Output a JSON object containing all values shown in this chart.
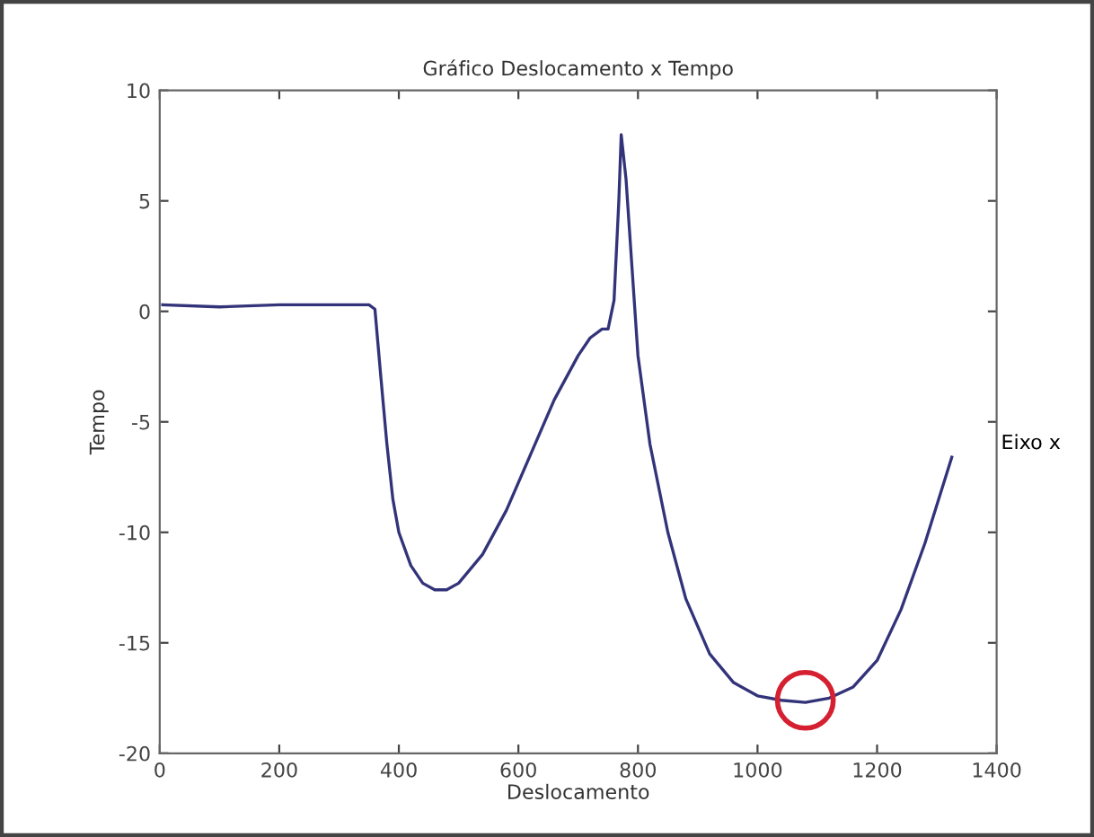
{
  "chart_data": {
    "type": "line",
    "title": "Gráfico Deslocamento x Tempo",
    "xlabel": "Deslocamento",
    "ylabel": "Tempo",
    "annotations": [
      "Eixo x"
    ],
    "xlim": [
      0,
      1400
    ],
    "ylim": [
      -20,
      10
    ],
    "xticks": [
      0,
      200,
      400,
      600,
      800,
      1000,
      1200,
      1400
    ],
    "yticks": [
      -20,
      -15,
      -10,
      -5,
      0,
      5,
      10
    ],
    "grid": false,
    "legend": false,
    "marker": "none",
    "line_style": "solid",
    "series": [
      {
        "color": "#33337a",
        "x": [
          5,
          100,
          200,
          300,
          350,
          360,
          370,
          380,
          390,
          400,
          420,
          440,
          460,
          480,
          500,
          540,
          580,
          620,
          660,
          700,
          720,
          740,
          750,
          760,
          768,
          772,
          780,
          790,
          800,
          820,
          850,
          880,
          920,
          960,
          1000,
          1040,
          1080,
          1120,
          1160,
          1200,
          1240,
          1280,
          1325
        ],
        "values": [
          0.3,
          0.2,
          0.3,
          0.3,
          0.3,
          0.1,
          -3,
          -6,
          -8.5,
          -10,
          -11.5,
          -12.3,
          -12.6,
          -12.6,
          -12.3,
          -11,
          -9,
          -6.5,
          -4,
          -2,
          -1.2,
          -0.8,
          -0.8,
          0.5,
          5,
          8,
          6,
          2,
          -2,
          -6,
          -10,
          -13,
          -15.5,
          -16.8,
          -17.4,
          -17.6,
          -17.7,
          -17.5,
          -17,
          -15.8,
          -13.5,
          -10.5,
          -6.6
        ]
      },
      {
        "type": "scatter",
        "color": "#d42030",
        "marker": "circle",
        "x": [
          1080
        ],
        "values": [
          -17.6
        ]
      }
    ]
  }
}
